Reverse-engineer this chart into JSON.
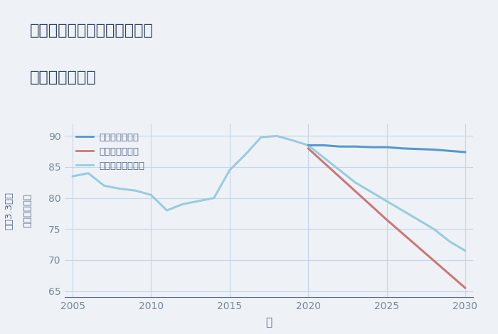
{
  "title_line1": "兵庫県西宮市上ヶ原九番町の",
  "title_line2": "土地の価格推移",
  "xlabel": "年",
  "ylabel_right": "単価（万円）",
  "ylabel_left": "平（3.3㎡）",
  "background_color": "#eef2f7",
  "plot_bg_color": "#eef2f7",
  "ylim": [
    64,
    92
  ],
  "xlim": [
    2004.5,
    2030.5
  ],
  "yticks": [
    65,
    70,
    75,
    80,
    85,
    90
  ],
  "xticks": [
    2005,
    2010,
    2015,
    2020,
    2025,
    2030
  ],
  "good_scenario": {
    "label": "グッドシナリオ",
    "color": "#5599cc",
    "linewidth": 2.2,
    "x": [
      2020,
      2021,
      2022,
      2023,
      2024,
      2025,
      2026,
      2027,
      2028,
      2029,
      2030
    ],
    "y": [
      88.5,
      88.5,
      88.3,
      88.3,
      88.2,
      88.2,
      88.0,
      87.9,
      87.8,
      87.6,
      87.4
    ]
  },
  "bad_scenario": {
    "label": "バッドシナリオ",
    "color": "#cc7777",
    "linewidth": 2.2,
    "x": [
      2020,
      2025,
      2030
    ],
    "y": [
      88.0,
      76.5,
      65.5
    ]
  },
  "normal_scenario": {
    "label": "ノーマルシナリオ",
    "color": "#99ccdd",
    "linewidth": 2.2,
    "x": [
      2005,
      2006,
      2007,
      2008,
      2009,
      2010,
      2011,
      2012,
      2013,
      2014,
      2015,
      2016,
      2017,
      2018,
      2019,
      2020,
      2021,
      2022,
      2023,
      2024,
      2025,
      2026,
      2027,
      2028,
      2029,
      2030
    ],
    "y": [
      83.5,
      84.0,
      82.0,
      81.5,
      81.2,
      80.5,
      78.0,
      79.0,
      79.5,
      80.0,
      84.5,
      87.0,
      89.8,
      90.0,
      89.3,
      88.5,
      86.5,
      84.5,
      82.5,
      81.0,
      79.5,
      78.0,
      76.5,
      75.0,
      73.0,
      71.5
    ]
  },
  "grid_color": "#c5d5e5",
  "title_color": "#334466",
  "axis_color": "#556688",
  "tick_color": "#778899",
  "legend_label_color": "#556688"
}
